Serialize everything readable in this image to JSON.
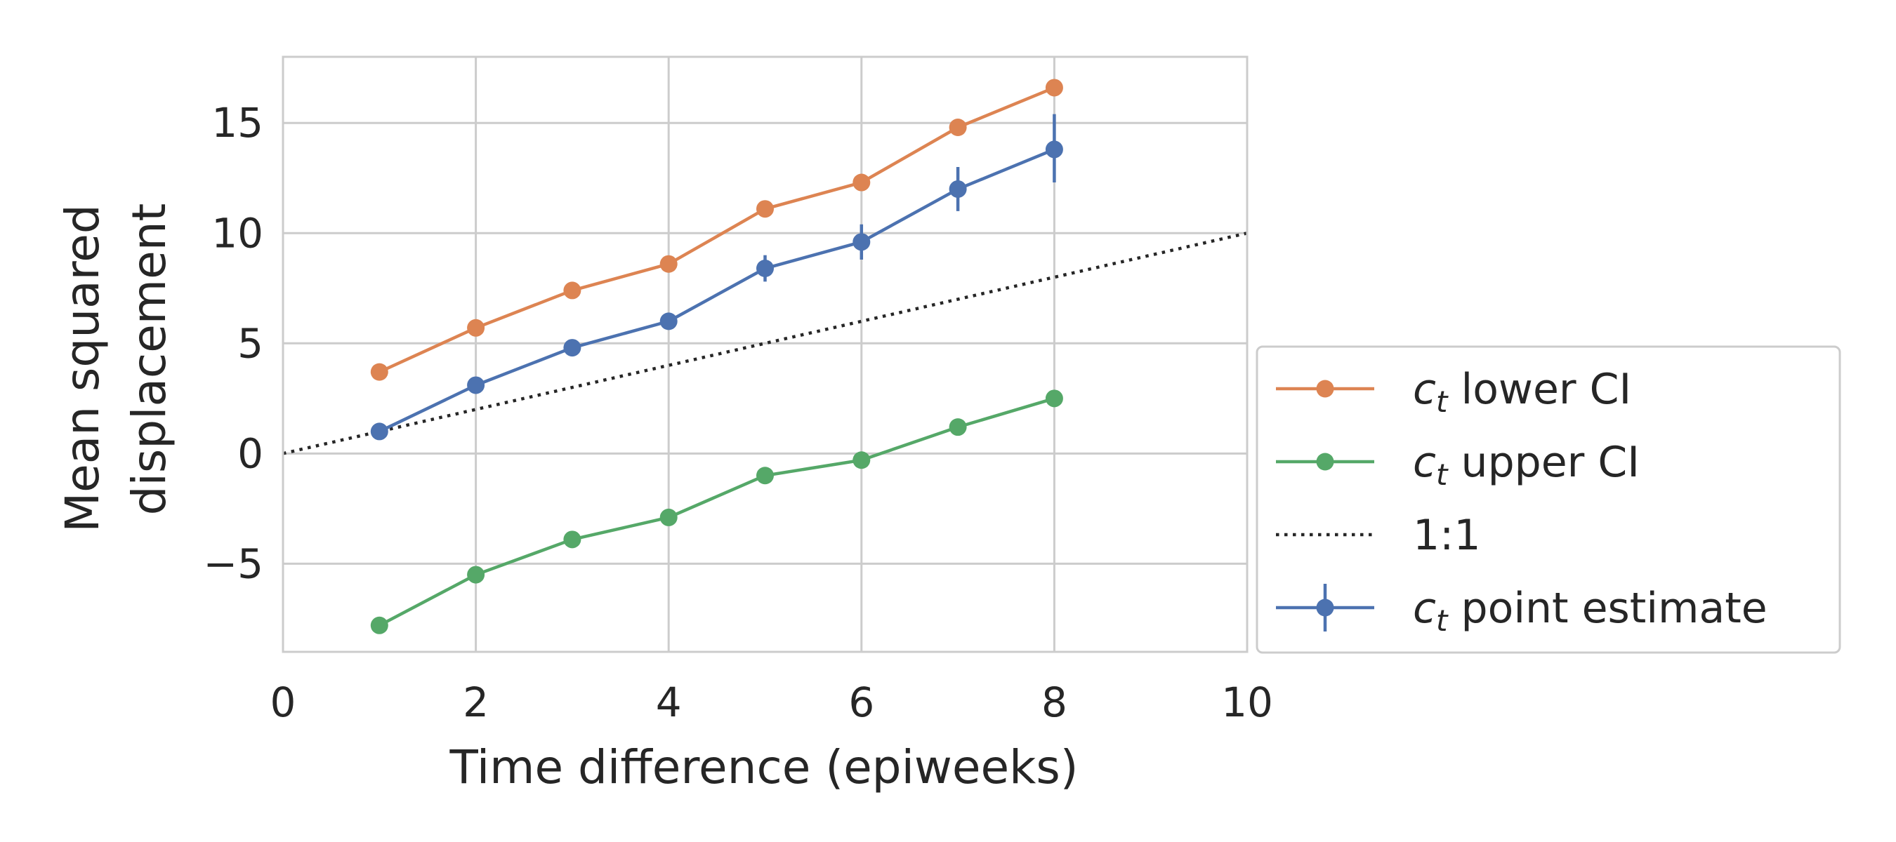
{
  "chart_data": {
    "type": "line",
    "xlabel": "Time difference (epiweeks)",
    "ylabel_lines": [
      "Mean squared",
      "displacement"
    ],
    "xlim": [
      0,
      10
    ],
    "ylim": [
      -9,
      18
    ],
    "xticks": [
      0,
      2,
      4,
      6,
      8,
      10
    ],
    "yticks": [
      -5,
      0,
      5,
      10,
      15
    ],
    "xtick_labels": [
      "0",
      "2",
      "4",
      "6",
      "8",
      "10"
    ],
    "ytick_labels": [
      "−5",
      "0",
      "5",
      "10",
      "15"
    ],
    "grid": true,
    "legend_position": "right-outside-bottom",
    "x": [
      1,
      2,
      3,
      4,
      5,
      6,
      7,
      8
    ],
    "series": [
      {
        "name": "lower",
        "legend_label": "lower CI",
        "color": "#dd8452",
        "values": [
          3.7,
          5.7,
          7.4,
          8.6,
          11.1,
          12.3,
          14.8,
          16.6
        ]
      },
      {
        "name": "upper",
        "legend_label": "upper CI",
        "color": "#55a868",
        "values": [
          -7.8,
          -5.5,
          -3.9,
          -2.9,
          -1.0,
          -0.3,
          1.2,
          2.5
        ]
      },
      {
        "name": "one-to-one",
        "legend_label": "1:1",
        "color": "#262626",
        "style": "dotted",
        "line_x": [
          0,
          10
        ],
        "line_y": [
          0,
          10
        ]
      },
      {
        "name": "point",
        "legend_label": "point estimate",
        "color": "#4c72b0",
        "values": [
          1.0,
          3.1,
          4.8,
          6.0,
          8.4,
          9.6,
          12.0,
          13.8
        ],
        "error_lower": [
          0.85,
          2.95,
          4.65,
          5.8,
          7.8,
          8.8,
          11.0,
          12.3
        ],
        "error_upper": [
          1.15,
          3.25,
          4.95,
          6.2,
          9.0,
          10.4,
          13.0,
          15.4
        ]
      }
    ],
    "legend_order": [
      "lower",
      "upper",
      "one-to-one",
      "point"
    ],
    "legend_math_symbol": "c",
    "legend_math_subscript": "t"
  }
}
